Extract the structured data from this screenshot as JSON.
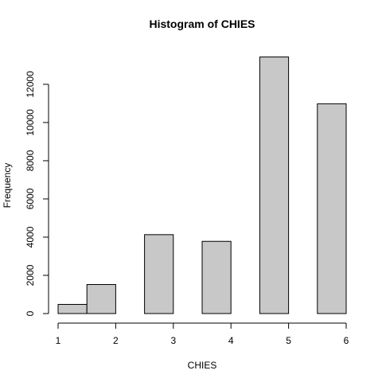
{
  "chart_data": {
    "type": "bar",
    "title": "Histogram of CHIES",
    "xlabel": "CHIES",
    "ylabel": "Frequency",
    "bin_edges": [
      1.0,
      1.5,
      2.0,
      2.5,
      3.0,
      3.5,
      4.0,
      4.5,
      5.0,
      5.5,
      6.0
    ],
    "values": [
      480,
      1520,
      0,
      4130,
      0,
      3780,
      0,
      13430,
      0,
      10980
    ],
    "xlim": [
      1,
      6
    ],
    "ylim": [
      0,
      13430
    ],
    "x_ticks": [
      1,
      2,
      3,
      4,
      5,
      6
    ],
    "y_ticks": [
      0,
      2000,
      4000,
      6000,
      8000,
      10000,
      12000
    ],
    "bar_color": "#c8c8c8",
    "grid": false
  }
}
